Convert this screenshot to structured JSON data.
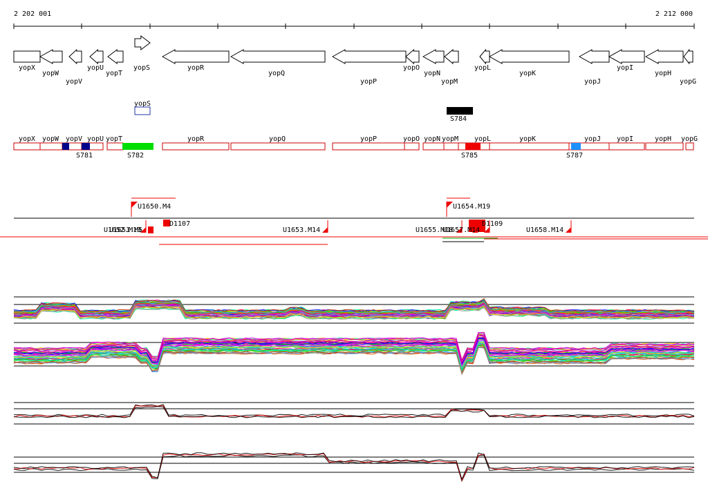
{
  "coords": {
    "start": "2 202 001",
    "end": "2 212 000"
  },
  "genes": [
    {
      "name": "yopX",
      "dir": "plain",
      "label_row": 1
    },
    {
      "name": "yopW",
      "dir": "left",
      "label_row": 2
    },
    {
      "name": "yopV",
      "dir": "left",
      "label_row": 3
    },
    {
      "name": "yopU",
      "dir": "left",
      "label_row": 1
    },
    {
      "name": "yopT",
      "dir": "left",
      "label_row": 2
    },
    {
      "name": "yopS",
      "dir": "right",
      "label_row": 1
    },
    {
      "name": "yopR",
      "dir": "left",
      "label_row": 1
    },
    {
      "name": "yopQ",
      "dir": "left",
      "label_row": 2
    },
    {
      "name": "yopP",
      "dir": "left",
      "label_row": 3
    },
    {
      "name": "yopO",
      "dir": "left",
      "label_row": 1
    },
    {
      "name": "yopN",
      "dir": "left",
      "label_row": 2
    },
    {
      "name": "yopM",
      "dir": "left",
      "label_row": 3
    },
    {
      "name": "yopL",
      "dir": "left",
      "label_row": 1
    },
    {
      "name": "yopK",
      "dir": "left",
      "label_row": 2
    },
    {
      "name": "yopJ",
      "dir": "left",
      "label_row": 3
    },
    {
      "name": "yopI",
      "dir": "left",
      "label_row": 1
    },
    {
      "name": "yopH",
      "dir": "left",
      "label_row": 2
    },
    {
      "name": "yopG",
      "dir": "left",
      "label_row": 3
    }
  ],
  "feature_track": [
    {
      "name": "yopS",
      "color": "#2233aa"
    },
    {
      "name": "S784",
      "color": "#000000"
    }
  ],
  "segments": [
    "yopX",
    "yopW",
    "yopV",
    "yopU",
    "yopT",
    "yopR",
    "yopQ",
    "yopP",
    "yopO",
    "yopN",
    "yopM",
    "yopL",
    "yopK",
    "yopJ",
    "yopI",
    "yopH",
    "yopG"
  ],
  "segment_marks": [
    {
      "name": "S781",
      "color": "#00008b"
    },
    {
      "name": "S782",
      "color": "#00dd00"
    },
    {
      "name": "S785",
      "color": "#ee0000"
    },
    {
      "name": "S787",
      "color": "#1e90ff"
    }
  ],
  "transcripts": [
    {
      "name": "U1650.M4",
      "row": "upper"
    },
    {
      "name": "U1654.M19",
      "row": "upper"
    },
    {
      "name": "U1652.M19",
      "row": "lower"
    },
    {
      "name": "U1651.M5",
      "row": "lower"
    },
    {
      "name": "D1107",
      "row": "lower"
    },
    {
      "name": "U1653.M14",
      "row": "lower"
    },
    {
      "name": "U1655.M18",
      "row": "lower"
    },
    {
      "name": "U1657.M14",
      "row": "lower"
    },
    {
      "name": "D1109",
      "row": "lower"
    },
    {
      "name": "U1658.M14",
      "row": "lower"
    }
  ],
  "colors": {
    "seg_stroke": "#cc0000",
    "transcript_red": "#ee0000",
    "expr_black": "#000000",
    "expr_red": "#ee0000",
    "expr_palette": [
      "#ff00ff",
      "#00cccc",
      "#ffcc00",
      "#0000ff",
      "#00cc00",
      "#ff6600",
      "#9900cc",
      "#ff0066",
      "#66cc00",
      "#3399ff",
      "#cc3300",
      "#999999",
      "#00ff99",
      "#cc00cc"
    ]
  }
}
